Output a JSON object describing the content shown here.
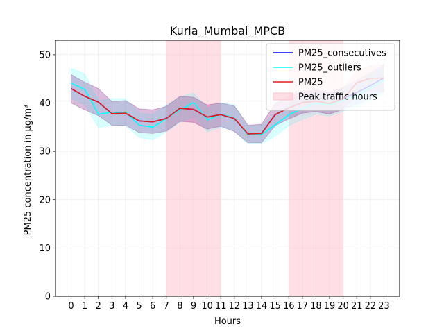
{
  "chart_data": {
    "type": "line",
    "title": "Kurla_Mumbai_MPCB",
    "xlabel": "Hours",
    "ylabel": "PM25 concentration in µg/m³",
    "xlim": [
      -1.15,
      24.15
    ],
    "ylim": [
      0,
      53
    ],
    "x": [
      0,
      1,
      2,
      3,
      4,
      5,
      6,
      7,
      8,
      9,
      10,
      11,
      12,
      13,
      14,
      15,
      16,
      17,
      18,
      19,
      20,
      21,
      22,
      23
    ],
    "xticks": [
      "0",
      "1",
      "2",
      "3",
      "4",
      "5",
      "6",
      "7",
      "8",
      "9",
      "10",
      "11",
      "12",
      "13",
      "14",
      "15",
      "16",
      "17",
      "18",
      "19",
      "20",
      "21",
      "22",
      "23"
    ],
    "yticks": [
      0,
      10,
      20,
      30,
      40,
      50
    ],
    "grid": true,
    "legend_position": "top-right",
    "peak_spans": [
      [
        7,
        11
      ],
      [
        16,
        20
      ]
    ],
    "series": [
      {
        "name": "PM25_consecutives",
        "color": "#0000ff",
        "values": [
          43.0,
          41.4,
          40.2,
          37.8,
          37.9,
          36.3,
          36.1,
          36.8,
          38.9,
          38.7,
          37.1,
          37.6,
          36.8,
          33.6,
          33.7,
          37.6,
          39.0,
          40.1,
          40.4,
          39.9,
          40.9,
          42.2,
          43.6,
          45.2
        ],
        "lower": [
          40.0,
          38.6,
          37.4,
          35.4,
          35.4,
          33.9,
          33.7,
          34.2,
          36.2,
          36.0,
          34.6,
          35.2,
          34.1,
          31.8,
          31.8,
          35.3,
          36.7,
          37.9,
          38.2,
          37.7,
          38.7,
          39.7,
          41.0,
          42.4
        ],
        "upper": [
          45.9,
          44.3,
          43.0,
          40.3,
          40.5,
          38.8,
          38.6,
          39.3,
          41.4,
          41.2,
          39.6,
          40.0,
          39.4,
          35.4,
          35.6,
          39.9,
          41.4,
          42.4,
          42.7,
          42.2,
          43.2,
          44.7,
          46.2,
          48.0
        ]
      },
      {
        "name": "PM25_outliers",
        "color": "#00ffff",
        "values": [
          44.1,
          42.8,
          37.7,
          38.1,
          38.1,
          35.4,
          35.0,
          36.8,
          38.6,
          40.1,
          36.5,
          37.7,
          36.9,
          33.4,
          33.5,
          35.5,
          37.6,
          38.9,
          40.0,
          39.6,
          40.6,
          41.5,
          43.2,
          44.7
        ],
        "lower": [
          41.0,
          39.6,
          35.0,
          35.3,
          35.3,
          32.9,
          32.4,
          34.0,
          36.0,
          37.2,
          34.0,
          35.0,
          34.2,
          31.5,
          31.6,
          33.2,
          35.3,
          36.6,
          37.7,
          37.3,
          38.3,
          39.0,
          40.6,
          42.0
        ],
        "upper": [
          47.2,
          46.0,
          40.5,
          40.9,
          40.9,
          37.9,
          37.6,
          39.6,
          41.3,
          42.1,
          39.0,
          40.1,
          39.6,
          35.2,
          35.4,
          37.8,
          39.9,
          41.2,
          42.3,
          41.9,
          42.9,
          44.0,
          45.8,
          47.4
        ]
      },
      {
        "name": "PM25",
        "color": "#e31a1c",
        "values": [
          43.0,
          41.4,
          40.2,
          37.8,
          37.9,
          36.3,
          36.1,
          36.8,
          38.9,
          38.7,
          37.1,
          37.6,
          36.8,
          33.6,
          33.7,
          37.6,
          39.0,
          40.1,
          40.4,
          39.9,
          40.9,
          44.2,
          45.1,
          45.2
        ],
        "lower": [
          40.0,
          38.6,
          37.4,
          35.4,
          35.4,
          33.9,
          33.7,
          34.2,
          36.2,
          36.0,
          34.6,
          35.2,
          34.1,
          31.8,
          31.8,
          35.3,
          36.7,
          37.9,
          38.2,
          37.7,
          38.7,
          41.7,
          42.5,
          42.4
        ],
        "upper": [
          45.9,
          44.3,
          43.0,
          40.3,
          40.5,
          38.8,
          38.6,
          39.3,
          41.4,
          41.2,
          39.6,
          40.0,
          39.4,
          35.4,
          35.6,
          39.9,
          41.4,
          42.4,
          42.7,
          42.2,
          43.2,
          46.7,
          47.7,
          48.0
        ]
      }
    ],
    "legend": [
      {
        "label": "PM25_consecutives",
        "kind": "line",
        "color": "#0000ff"
      },
      {
        "label": "PM25_outliers",
        "kind": "line",
        "color": "#00ffff"
      },
      {
        "label": "PM25",
        "kind": "line",
        "color": "#e31a1c"
      },
      {
        "label": "Peak traffic hours",
        "kind": "patch",
        "color": "#ffc0cb"
      }
    ]
  }
}
